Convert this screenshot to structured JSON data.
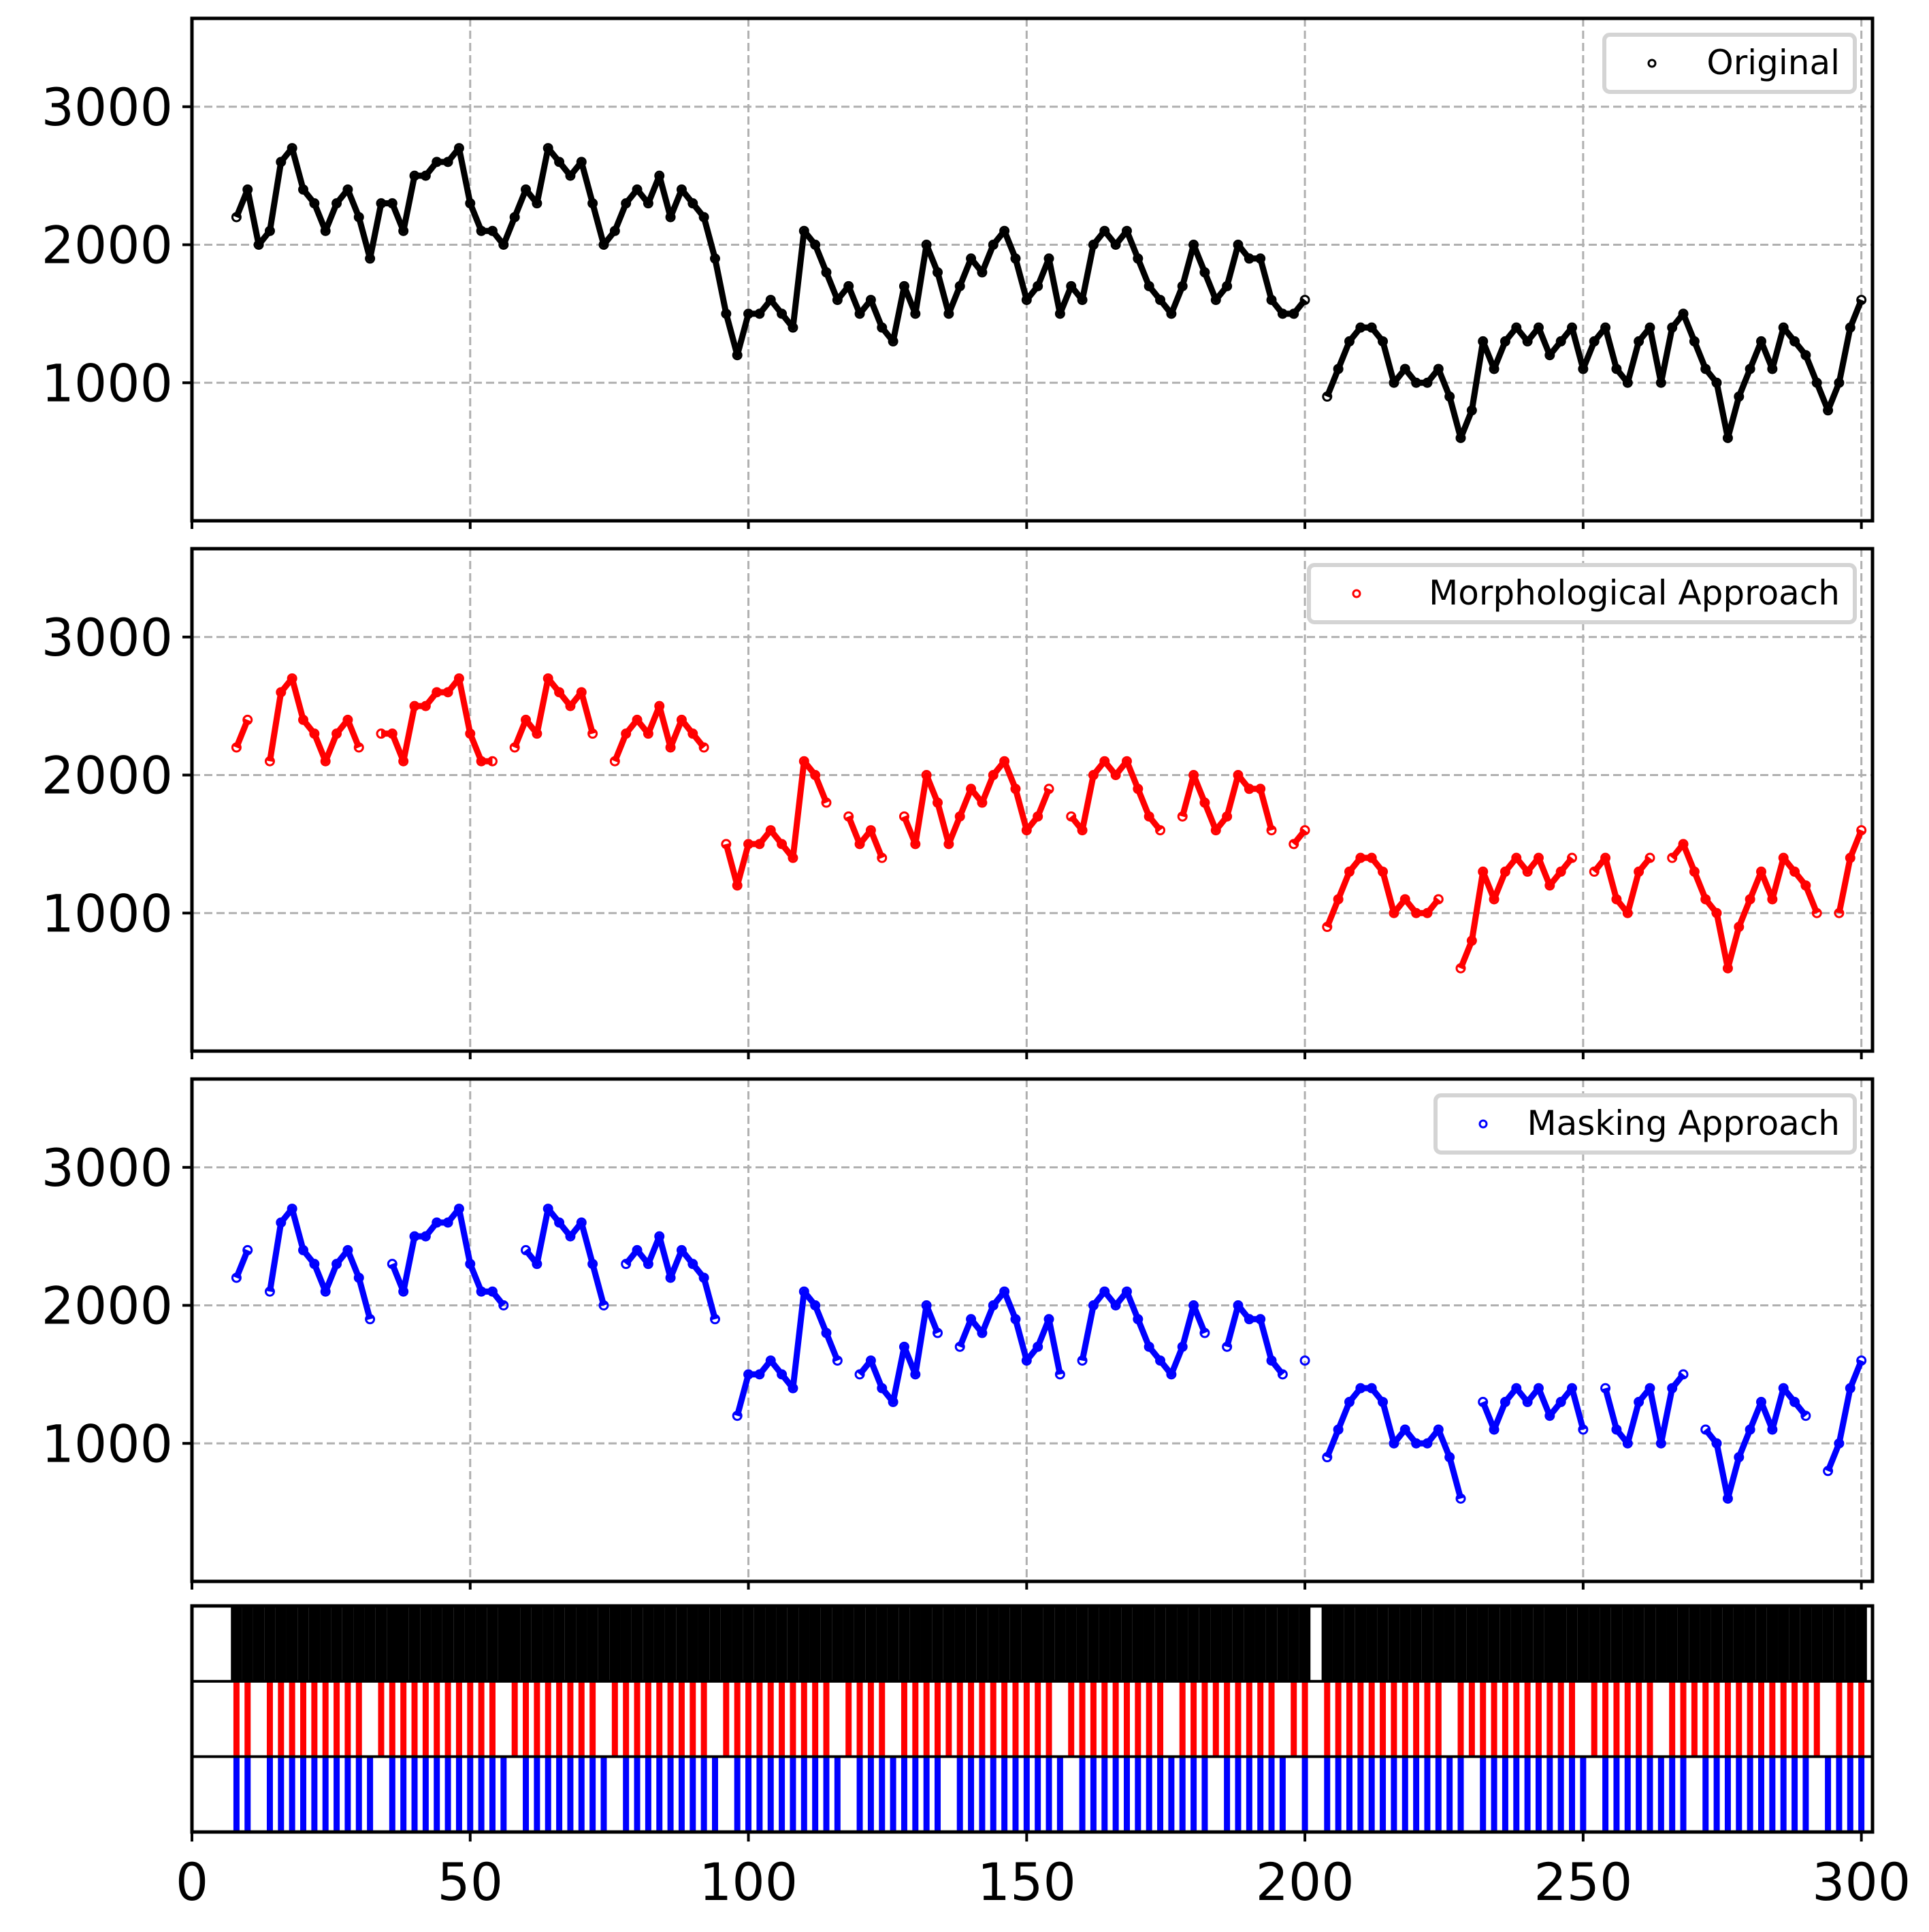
{
  "chart_data": {
    "type": "scatter",
    "xlim": [
      0,
      302
    ],
    "ylim": [
      0,
      3640
    ],
    "x_ticks": [
      "0",
      "50",
      "100",
      "150",
      "200",
      "250",
      "300"
    ],
    "y_ticks": [
      "1000",
      "2000",
      "3000"
    ],
    "grid": true,
    "legend_placement": "top-right",
    "x_start": 8,
    "x_step": 2,
    "original_values": [
      2200,
      2400,
      2000,
      2100,
      2600,
      2700,
      2400,
      2300,
      2100,
      2300,
      2400,
      2200,
      1900,
      2300,
      2300,
      2100,
      2500,
      2500,
      2600,
      2600,
      2700,
      2300,
      2100,
      2100,
      2000,
      2200,
      2400,
      2300,
      2700,
      2600,
      2500,
      2600,
      2300,
      2000,
      2100,
      2300,
      2400,
      2300,
      2500,
      2200,
      2400,
      2300,
      2200,
      1900,
      1500,
      1200,
      1500,
      1500,
      1600,
      1500,
      1400,
      2100,
      2000,
      1800,
      1600,
      1700,
      1500,
      1600,
      1400,
      1300,
      1700,
      1500,
      2000,
      1800,
      1500,
      1700,
      1900,
      1800,
      2000,
      2100,
      1900,
      1600,
      1700,
      1900,
      1500,
      1700,
      1600,
      2000,
      2100,
      2000,
      2100,
      1900,
      1700,
      1600,
      1500,
      1700,
      2000,
      1800,
      1600,
      1700,
      2000,
      1900,
      1900,
      1600,
      1500,
      1500,
      1600,
      null,
      900,
      1100,
      1300,
      1400,
      1400,
      1300,
      1000,
      1100,
      1000,
      1000,
      1100,
      900,
      600,
      800,
      1300,
      1100,
      1300,
      1400,
      1300,
      1400,
      1200,
      1300,
      1400,
      1100,
      1300,
      1400,
      1100,
      1000,
      1300,
      1400,
      1000,
      1400,
      1500,
      1300,
      1100,
      1000,
      600,
      900,
      1100,
      1300,
      1100,
      1400,
      1300,
      1200,
      1000,
      800,
      1000,
      1400,
      1600
    ],
    "series": [
      {
        "name": "Original",
        "color": "#000000",
        "removed_x": []
      },
      {
        "name": "Morphological Approach",
        "color": "#ff0000",
        "removed_x": [
          12,
          32,
          56,
          74,
          94,
          116,
          126,
          156,
          176,
          196,
          226,
          250,
          264,
          294
        ]
      },
      {
        "name": "Masking Approach",
        "color": "#0000ff",
        "removed_x": [
          12,
          34,
          58,
          76,
          96,
          118,
          136,
          158,
          184,
          198,
          230,
          252,
          270,
          292
        ]
      }
    ]
  }
}
